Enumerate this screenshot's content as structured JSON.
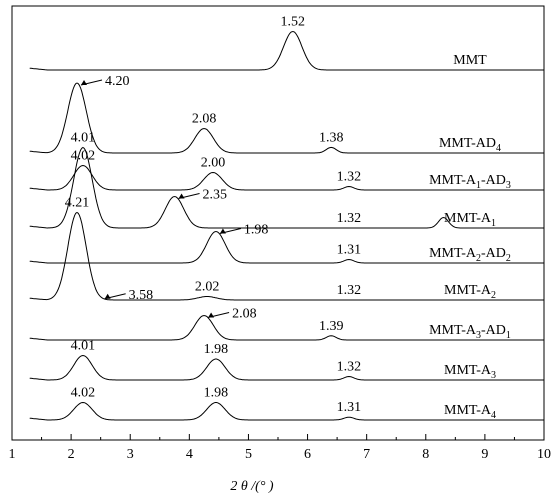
{
  "chart_data": {
    "type": "line",
    "xlabel": "2 θ /(° )",
    "xlim": [
      1,
      10
    ],
    "x_ticks": [
      "1",
      "2",
      "3",
      "4",
      "5",
      "6",
      "7",
      "8",
      "9",
      "10"
    ],
    "y_ticks": false,
    "grid": false,
    "series": [
      {
        "name": "MMT",
        "label_sub": "",
        "peaks": [
          {
            "x": 5.75,
            "text": "1.52",
            "h": 0.55
          }
        ],
        "minor": [],
        "annotations": [
          {
            "text": "1.52",
            "x": 5.75,
            "dy": -0.62,
            "arrow": false
          }
        ],
        "baseline": 0.0
      },
      {
        "name": "MMT-AD",
        "label_sub": "4",
        "peaks": [
          {
            "x": 2.1,
            "h": 1.0
          },
          {
            "x": 4.25,
            "h": 0.35
          }
        ],
        "minor": [
          {
            "x": 6.4,
            "h": 0.08
          }
        ],
        "annotations": [
          {
            "text": "4.20",
            "x": 2.1,
            "arrow": true
          },
          {
            "text": "2.08",
            "x": 4.25,
            "arrow": false
          },
          {
            "text": "1.38",
            "x": 6.4,
            "arrow": false
          }
        ]
      },
      {
        "name": "MMT-A",
        "label_sub": "1",
        "label_suffix": "-AD",
        "label_suffix_sub": "3",
        "peaks": [
          {
            "x": 2.2,
            "h": 0.35
          },
          {
            "x": 4.4,
            "h": 0.25
          }
        ],
        "minor": [
          {
            "x": 6.7,
            "h": 0.05
          }
        ],
        "annotations": [
          {
            "text": "4.02",
            "x": 2.2,
            "arrow": false
          },
          {
            "text": "2.00",
            "x": 4.4,
            "arrow": false
          },
          {
            "text": "1.32",
            "x": 6.7,
            "arrow": false
          }
        ]
      },
      {
        "name": "MMT-A",
        "label_sub": "1",
        "peaks": [
          {
            "x": 2.2,
            "h": 1.15
          },
          {
            "x": 3.75,
            "h": 0.45
          }
        ],
        "minor": [
          {
            "x": 8.3,
            "h": 0.15
          }
        ],
        "annotations": [
          {
            "text": "4.01",
            "x": 2.2,
            "arrow": false
          },
          {
            "text": "2.35",
            "x": 3.75,
            "arrow": true
          },
          {
            "text": "1.32",
            "x": 6.7,
            "arrow": false
          }
        ]
      },
      {
        "name": "MMT-A",
        "label_sub": "2",
        "label_suffix": "-AD",
        "label_suffix_sub": "2",
        "peaks": [
          {
            "x": 4.45,
            "h": 0.45
          }
        ],
        "minor": [
          {
            "x": 6.7,
            "h": 0.05
          }
        ],
        "annotations": [
          {
            "text": "1.98",
            "x": 4.45,
            "arrow": true
          },
          {
            "text": "1.31",
            "x": 6.7,
            "arrow": false
          }
        ]
      },
      {
        "name": "MMT-A",
        "label_sub": "2",
        "peaks": [
          {
            "x": 2.1,
            "h": 1.25
          },
          {
            "x": 4.3,
            "h": 0.05
          }
        ],
        "minor": [],
        "annotations": [
          {
            "text": "4.21",
            "x": 2.1,
            "arrow": false
          },
          {
            "text": "3.58",
            "x": 2.5,
            "arrow": true
          },
          {
            "text": "2.02",
            "x": 4.3,
            "arrow": false
          },
          {
            "text": "1.32",
            "x": 6.7,
            "arrow": false
          }
        ]
      },
      {
        "name": "MMT-A",
        "label_sub": "3",
        "label_suffix": "-AD",
        "label_suffix_sub": "1",
        "peaks": [
          {
            "x": 4.25,
            "h": 0.35
          }
        ],
        "minor": [
          {
            "x": 6.4,
            "h": 0.06
          }
        ],
        "annotations": [
          {
            "text": "2.08",
            "x": 4.25,
            "arrow": true
          },
          {
            "text": "1.39",
            "x": 6.4,
            "arrow": false
          }
        ]
      },
      {
        "name": "MMT-A",
        "label_sub": "3",
        "peaks": [
          {
            "x": 2.2,
            "h": 0.35
          },
          {
            "x": 4.45,
            "h": 0.3
          }
        ],
        "minor": [
          {
            "x": 6.7,
            "h": 0.05
          }
        ],
        "annotations": [
          {
            "text": "4.01",
            "x": 2.2,
            "arrow": false
          },
          {
            "text": "1.98",
            "x": 4.45,
            "arrow": false
          },
          {
            "text": "1.32",
            "x": 6.7,
            "arrow": false
          }
        ]
      },
      {
        "name": "MMT-A",
        "label_sub": "4",
        "peaks": [
          {
            "x": 2.2,
            "h": 0.25
          },
          {
            "x": 4.45,
            "h": 0.25
          }
        ],
        "minor": [
          {
            "x": 6.7,
            "h": 0.04
          }
        ],
        "annotations": [
          {
            "text": "4.02",
            "x": 2.2,
            "arrow": false
          },
          {
            "text": "1.98",
            "x": 4.45,
            "arrow": false
          },
          {
            "text": "1.31",
            "x": 6.7,
            "arrow": false
          }
        ]
      }
    ]
  }
}
